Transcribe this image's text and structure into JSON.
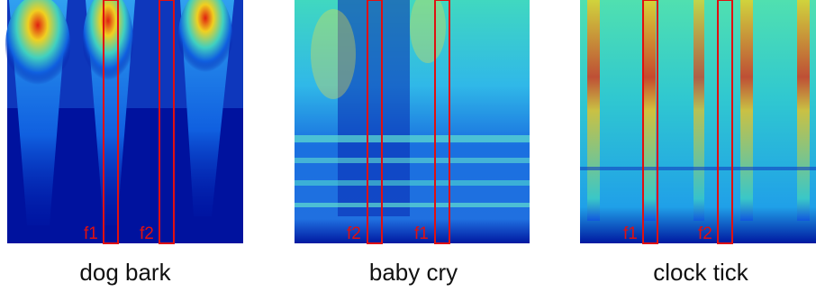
{
  "panels": [
    {
      "caption": "dog bark",
      "markers": [
        "f1",
        "f2"
      ]
    },
    {
      "caption": "baby cry",
      "markers": [
        "f2",
        "f1"
      ]
    },
    {
      "caption": "clock tick",
      "markers": [
        "f1",
        "f2"
      ]
    }
  ]
}
